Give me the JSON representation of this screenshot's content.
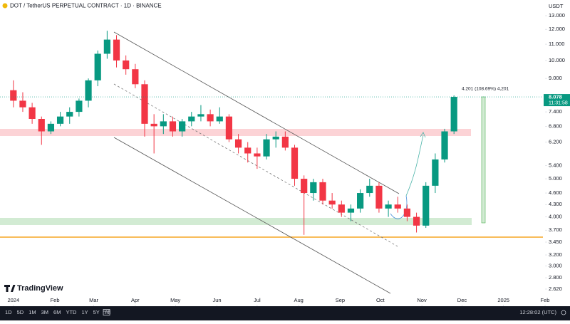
{
  "chart_data": {
    "type": "candlestick",
    "title": "DOT / TetherUS PERPETUAL CONTRACT · 1D · BINANCE",
    "y_unit": "USDT",
    "log_scale": true,
    "up_color": "#089981",
    "down_color": "#f23645",
    "x": [
      1,
      8,
      15,
      22,
      29,
      36,
      43,
      50,
      57,
      64,
      71,
      78,
      85,
      92,
      99,
      106,
      113,
      120,
      127,
      134,
      141,
      148,
      155,
      162,
      169,
      176,
      183,
      190,
      197,
      204,
      211,
      218,
      225,
      232,
      239,
      246,
      253,
      260,
      267,
      274,
      281,
      288,
      295,
      302,
      309,
      316,
      323,
      330
    ],
    "open": [
      8.4,
      7.9,
      7.6,
      7.1,
      6.6,
      6.9,
      7.2,
      7.4,
      7.9,
      8.9,
      10.4,
      11.3,
      10.0,
      9.5,
      8.7,
      6.9,
      6.8,
      7.0,
      6.6,
      7.0,
      7.2,
      7.3,
      7.0,
      7.2,
      6.3,
      6.0,
      5.8,
      5.7,
      6.3,
      6.4,
      6.0,
      5.0,
      4.6,
      4.9,
      4.4,
      4.3,
      4.1,
      4.2,
      4.6,
      4.8,
      4.2,
      4.3,
      4.2,
      4.0,
      3.8,
      4.8,
      5.6,
      6.6
    ],
    "high": [
      8.9,
      8.3,
      7.8,
      7.2,
      7.0,
      7.4,
      7.6,
      8.0,
      9.0,
      10.6,
      11.9,
      11.6,
      10.3,
      9.8,
      8.9,
      7.3,
      7.3,
      7.2,
      7.1,
      7.4,
      7.7,
      7.5,
      7.6,
      7.3,
      6.5,
      6.2,
      6.0,
      6.5,
      6.6,
      6.6,
      6.1,
      5.1,
      5.0,
      5.0,
      4.6,
      4.4,
      4.3,
      4.7,
      5.0,
      4.9,
      4.4,
      4.5,
      4.3,
      4.1,
      4.9,
      5.8,
      6.7,
      8.15
    ],
    "low": [
      7.6,
      7.4,
      6.9,
      6.1,
      6.5,
      6.8,
      6.9,
      7.2,
      7.6,
      8.6,
      10.1,
      9.6,
      9.2,
      8.5,
      6.4,
      5.8,
      6.5,
      6.4,
      6.4,
      6.8,
      7.0,
      6.8,
      6.9,
      6.2,
      5.8,
      5.5,
      5.3,
      5.6,
      6.0,
      5.9,
      4.8,
      3.6,
      4.4,
      4.3,
      4.2,
      4.0,
      3.9,
      4.1,
      4.5,
      4.1,
      4.0,
      4.1,
      3.9,
      3.65,
      3.75,
      4.6,
      5.5,
      6.5
    ],
    "close": [
      7.9,
      7.6,
      7.1,
      6.6,
      6.9,
      7.2,
      7.4,
      7.9,
      8.9,
      10.4,
      11.3,
      10.0,
      9.5,
      8.7,
      6.9,
      6.8,
      7.0,
      6.6,
      7.0,
      7.2,
      7.3,
      7.0,
      7.2,
      6.3,
      6.0,
      5.8,
      5.7,
      6.3,
      6.4,
      6.0,
      5.0,
      4.6,
      4.9,
      4.4,
      4.3,
      4.1,
      4.2,
      4.6,
      4.8,
      4.2,
      4.3,
      4.2,
      4.0,
      3.8,
      4.8,
      5.6,
      6.6,
      8.078
    ],
    "xlim": [
      -9,
      398
    ],
    "xticks": [
      {
        "value": 1,
        "label": "2024"
      },
      {
        "value": 32,
        "label": "Feb"
      },
      {
        "value": 61,
        "label": "Mar"
      },
      {
        "value": 92,
        "label": "Apr"
      },
      {
        "value": 122,
        "label": "May"
      },
      {
        "value": 153,
        "label": "Jun"
      },
      {
        "value": 183,
        "label": "Jul"
      },
      {
        "value": 214,
        "label": "Aug"
      },
      {
        "value": 245,
        "label": "Sep"
      },
      {
        "value": 275,
        "label": "Oct"
      },
      {
        "value": 306,
        "label": "Nov"
      },
      {
        "value": 336,
        "label": "Dec"
      },
      {
        "value": 367,
        "label": "2025"
      },
      {
        "value": 398,
        "label": "Feb"
      }
    ],
    "ylim": [
      2.39,
      14.25
    ],
    "yticks": [
      {
        "value": 13,
        "label": "13.000"
      },
      {
        "value": 12,
        "label": "12.000"
      },
      {
        "value": 11,
        "label": "11.000"
      },
      {
        "value": 10,
        "label": "10.000"
      },
      {
        "value": 9,
        "label": "9.000"
      },
      {
        "value": 7.4,
        "label": "7.400"
      },
      {
        "value": 6.8,
        "label": "6.800"
      },
      {
        "value": 6.2,
        "label": "6.200"
      },
      {
        "value": 5.4,
        "label": "5.400"
      },
      {
        "value": 5,
        "label": "5.000"
      },
      {
        "value": 4.6,
        "label": "4.600"
      },
      {
        "value": 4.3,
        "label": "4.300"
      },
      {
        "value": 4,
        "label": "4.000"
      },
      {
        "value": 3.7,
        "label": "3.700"
      },
      {
        "value": 3.45,
        "label": "3.450"
      },
      {
        "value": 3.2,
        "label": "3.200"
      },
      {
        "value": 3,
        "label": "3.000"
      },
      {
        "value": 2.8,
        "label": "2.800"
      },
      {
        "value": 2.62,
        "label": "2.620"
      }
    ],
    "grid": false,
    "countdown": "11:31:58",
    "measure_label": "4.201 (108.69%) 4,201",
    "brand": "TradingView",
    "timeframes": [
      "1D",
      "5D",
      "1M",
      "3M",
      "6M",
      "YTD",
      "1Y",
      "5Y",
      "All"
    ],
    "clock": "12:28:02 (UTC)"
  }
}
